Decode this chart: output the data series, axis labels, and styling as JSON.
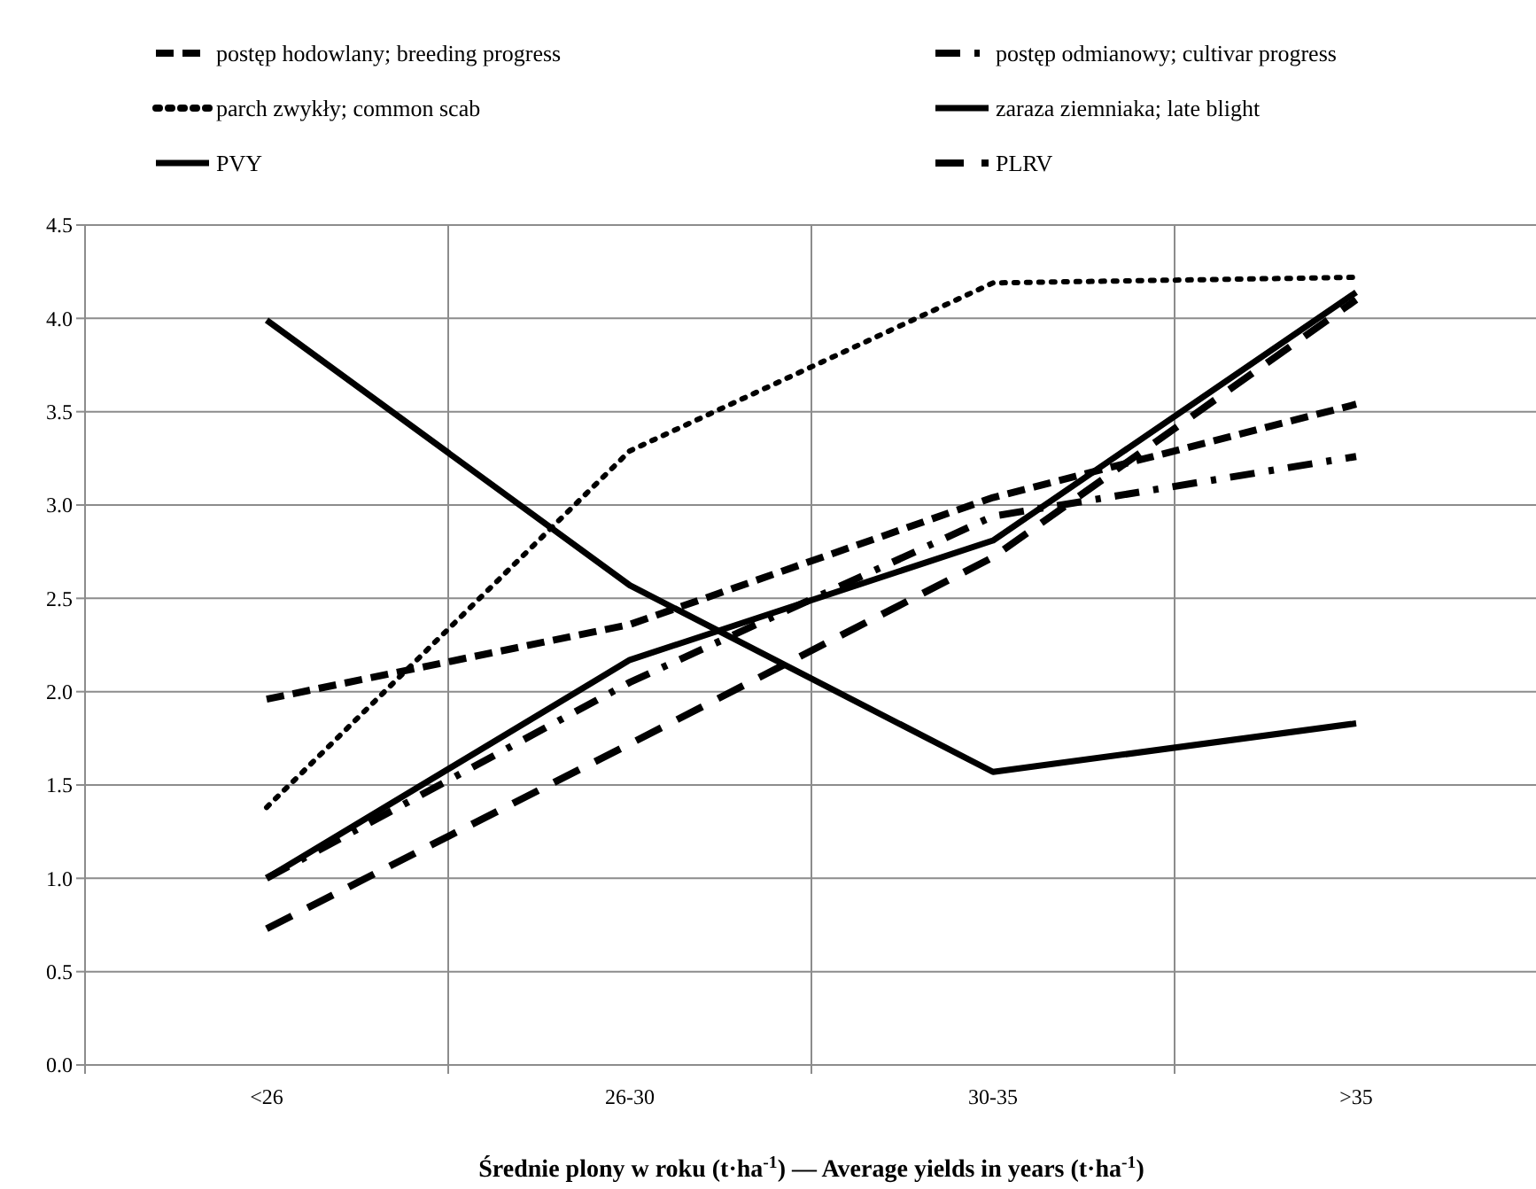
{
  "chart_data": {
    "type": "line",
    "xlabel": "Średnie plony w roku (t·ha$^{-1}$) — Average yields in years (t·ha$^{-1}$)",
    "categories": [
      "<26",
      "26-30",
      "30-35",
      ">35"
    ],
    "ylim": [
      0,
      4.5
    ],
    "yticks": [
      {
        "value": 0,
        "label": "0.0"
      },
      {
        "value": 0.5,
        "label": "0.5"
      },
      {
        "value": 1,
        "label": "1.0"
      },
      {
        "value": 1.5,
        "label": "1.5"
      },
      {
        "value": 2,
        "label": "2.0"
      },
      {
        "value": 2.5,
        "label": "2.5"
      },
      {
        "value": 3,
        "label": "3.0"
      },
      {
        "value": 3.5,
        "label": "3.5"
      },
      {
        "value": 4,
        "label": "4.0"
      },
      {
        "value": 4.5,
        "label": "4.5"
      }
    ],
    "grid": true,
    "legend": "top",
    "marker": "none",
    "series": [
      {
        "name": "postęp hodowlany; breeding progress",
        "color": "#000000",
        "line_style": "dashed",
        "values": [
          1.96,
          2.36,
          3.04,
          3.54
        ]
      },
      {
        "name": "postęp odmianowy; cultivar progress",
        "color": "#000000",
        "line_style": "dashed",
        "values": [
          1.0,
          2.05,
          2.94,
          3.26
        ]
      },
      {
        "name": "parch zwykły; common scab",
        "color": "#000000",
        "line_style": "dotted",
        "values": [
          1.38,
          3.29,
          4.19,
          4.22
        ]
      },
      {
        "name": "zaraza ziemniaka; late blight",
        "color": "#000000",
        "line_style": "solid",
        "values": [
          1.0,
          2.17,
          2.81,
          4.14
        ]
      },
      {
        "name": "PVY",
        "color": "#000000",
        "line_style": "solid",
        "values": [
          3.99,
          2.57,
          1.57,
          1.83
        ]
      },
      {
        "name": "PLRV",
        "color": "#000000",
        "line_style": "dashed",
        "values": [
          0.73,
          1.72,
          2.72,
          4.1
        ]
      }
    ]
  }
}
